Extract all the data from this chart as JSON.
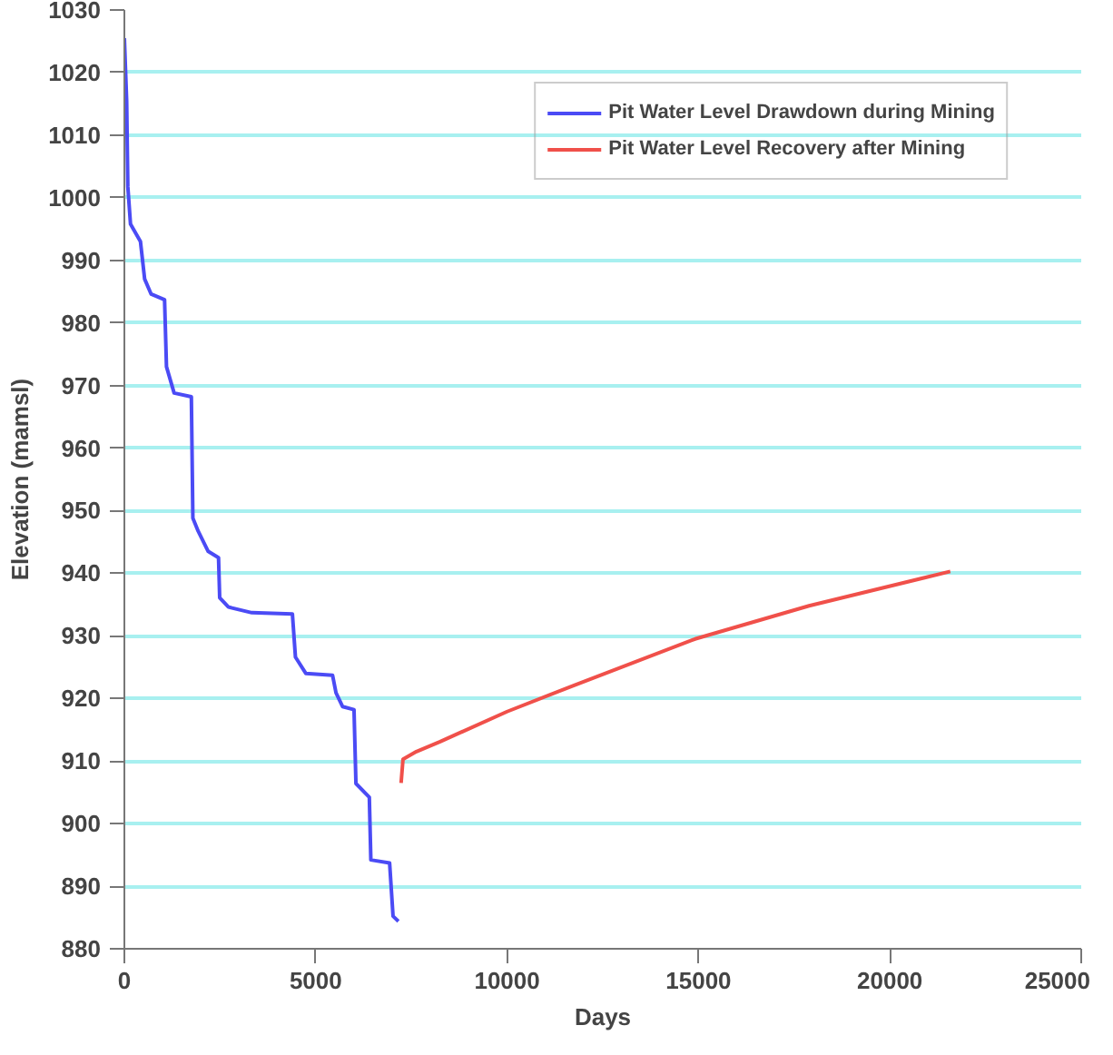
{
  "chart_data": {
    "type": "line",
    "xlabel": "Days",
    "ylabel": "Elevation (mamsl)",
    "xlim": [
      0,
      25000
    ],
    "xticks": [
      0,
      5000,
      10000,
      15000,
      20000,
      25000
    ],
    "ylim": [
      880,
      1030
    ],
    "yticks": [
      880,
      890,
      900,
      910,
      920,
      930,
      940,
      950,
      960,
      970,
      980,
      990,
      1000,
      1010,
      1020,
      1030
    ],
    "grid": "y",
    "legend": "top right",
    "line_style": "solid",
    "marker": "none",
    "series": [
      {
        "name": "Pit Water Level Drawdown during Mining",
        "color": "#4b4bf5",
        "x": [
          0,
          60,
          90,
          160,
          420,
          530,
          700,
          1050,
          1100,
          1300,
          1750,
          1790,
          1930,
          2190,
          2460,
          2490,
          2720,
          3330,
          4390,
          4470,
          4740,
          5440,
          5530,
          5700,
          6000,
          6050,
          6400,
          6440,
          6930,
          7020,
          7160
        ],
        "values": [
          1025.5,
          1015.4,
          1001.8,
          995.8,
          993,
          987,
          984.6,
          983.7,
          973,
          968.8,
          968.2,
          948.8,
          946.7,
          943.5,
          942.5,
          936.1,
          934.6,
          933.7,
          933.5,
          926.6,
          924,
          923.7,
          920.9,
          918.7,
          918.2,
          906.4,
          904.2,
          894.2,
          893.7,
          885.2,
          884.4
        ]
      },
      {
        "name": "Pit Water Level Recovery after Mining",
        "color": "#f0504a",
        "x": [
          7230,
          7280,
          7630,
          8250,
          10000,
          11750,
          14910,
          17890,
          21580
        ],
        "values": [
          906.5,
          910.3,
          911.5,
          913.1,
          917.9,
          922.1,
          929.5,
          934.8,
          940.3
        ]
      }
    ]
  }
}
